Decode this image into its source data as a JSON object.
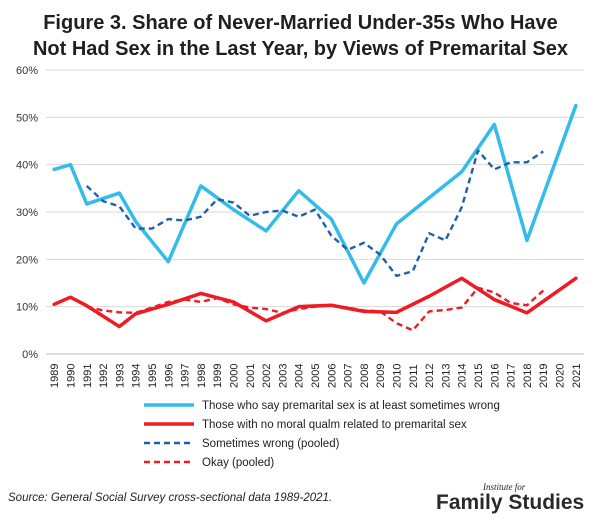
{
  "chart_data": {
    "type": "line",
    "title_line1": "Figure 3. Share of Never-Married Under-35s Who Have",
    "title_line2": "Not Had Sex in the Last Year, by Views of Premarital Sex",
    "ylim": [
      0,
      60
    ],
    "yticks": [
      "0%",
      "10%",
      "20%",
      "30%",
      "40%",
      "50%",
      "60%"
    ],
    "ytick_values": [
      0,
      10,
      20,
      30,
      40,
      50,
      60
    ],
    "categories": [
      "1989",
      "1990",
      "1991",
      "1992",
      "1993",
      "1994",
      "1995",
      "1996",
      "1997",
      "1998",
      "1999",
      "2000",
      "2001",
      "2002",
      "2003",
      "2004",
      "2005",
      "2006",
      "2007",
      "2008",
      "2009",
      "2010",
      "2011",
      "2012",
      "2013",
      "2014",
      "2015",
      "2016",
      "2017",
      "2018",
      "2019",
      "2020",
      "2021"
    ],
    "grid": true,
    "legend_position": "bottom",
    "series": [
      {
        "name": "Those who say premarital sex is at least sometimes wrong",
        "color": "#33bcea",
        "style": "solid",
        "points": [
          [
            1989,
            39
          ],
          [
            1990,
            40
          ],
          [
            1991,
            31.7
          ],
          [
            1993,
            34
          ],
          [
            1994,
            28
          ],
          [
            1996,
            19.5
          ],
          [
            1998,
            35.5
          ],
          [
            2000,
            30.5
          ],
          [
            2002,
            26
          ],
          [
            2004,
            34.5
          ],
          [
            2006,
            28.5
          ],
          [
            2008,
            15
          ],
          [
            2010,
            27.5
          ],
          [
            2012,
            33
          ],
          [
            2014,
            38.5
          ],
          [
            2016,
            48.5
          ],
          [
            2018,
            24
          ],
          [
            2021,
            52.5
          ]
        ]
      },
      {
        "name": "Those with no moral qualm related to premarital sex",
        "color": "#ef1b24",
        "style": "solid",
        "points": [
          [
            1989,
            10.5
          ],
          [
            1990,
            12
          ],
          [
            1991,
            10.2
          ],
          [
            1993,
            5.8
          ],
          [
            1994,
            8.5
          ],
          [
            1996,
            10.5
          ],
          [
            1998,
            12.8
          ],
          [
            2000,
            11
          ],
          [
            2002,
            7
          ],
          [
            2004,
            10
          ],
          [
            2006,
            10.3
          ],
          [
            2008,
            9
          ],
          [
            2010,
            8.8
          ],
          [
            2012,
            12.2
          ],
          [
            2014,
            16
          ],
          [
            2016,
            11.5
          ],
          [
            2018,
            8.7
          ],
          [
            2021,
            16
          ]
        ]
      },
      {
        "name": "Sometimes wrong (pooled)",
        "color": "#1f5fac",
        "style": "dashed",
        "points": [
          [
            1991,
            35.5
          ],
          [
            1992,
            32.3
          ],
          [
            1993,
            31.2
          ],
          [
            1994,
            26.5
          ],
          [
            1995,
            26.5
          ],
          [
            1996,
            28.5
          ],
          [
            1997,
            28.2
          ],
          [
            1998,
            29
          ],
          [
            1999,
            32.7
          ],
          [
            2000,
            32
          ],
          [
            2001,
            29.2
          ],
          [
            2002,
            30
          ],
          [
            2003,
            30.3
          ],
          [
            2004,
            29
          ],
          [
            2005,
            30.5
          ],
          [
            2006,
            25
          ],
          [
            2007,
            22
          ],
          [
            2008,
            23.5
          ],
          [
            2009,
            21
          ],
          [
            2010,
            16.5
          ],
          [
            2011,
            17.5
          ],
          [
            2012,
            25.5
          ],
          [
            2013,
            24
          ],
          [
            2014,
            31
          ],
          [
            2015,
            43
          ],
          [
            2016,
            39
          ],
          [
            2017,
            40.5
          ],
          [
            2018,
            40.5
          ],
          [
            2019,
            42.8
          ]
        ]
      },
      {
        "name": "Okay (pooled)",
        "color": "#ef1b24",
        "style": "dashed",
        "points": [
          [
            1991,
            10
          ],
          [
            1992,
            9.2
          ],
          [
            1993,
            8.8
          ],
          [
            1994,
            8.7
          ],
          [
            1995,
            9.8
          ],
          [
            1996,
            11
          ],
          [
            1997,
            11.5
          ],
          [
            1998,
            11
          ],
          [
            1999,
            11.8
          ],
          [
            2000,
            10.5
          ],
          [
            2001,
            9.8
          ],
          [
            2002,
            9.5
          ],
          [
            2003,
            8.7
          ],
          [
            2004,
            9.5
          ],
          [
            2005,
            10
          ],
          [
            2006,
            10.2
          ],
          [
            2007,
            9.8
          ],
          [
            2008,
            9.2
          ],
          [
            2009,
            9
          ],
          [
            2010,
            6.5
          ],
          [
            2011,
            5
          ],
          [
            2012,
            9
          ],
          [
            2013,
            9.3
          ],
          [
            2014,
            9.8
          ],
          [
            2015,
            14
          ],
          [
            2016,
            13
          ],
          [
            2017,
            10.8
          ],
          [
            2018,
            10.3
          ],
          [
            2019,
            13.4
          ]
        ]
      }
    ]
  },
  "footer": {
    "source": "Source: General Social Survey cross-sectional data 1989-2021.",
    "logo_small": "Institute for",
    "logo_big": "Family Studies"
  }
}
